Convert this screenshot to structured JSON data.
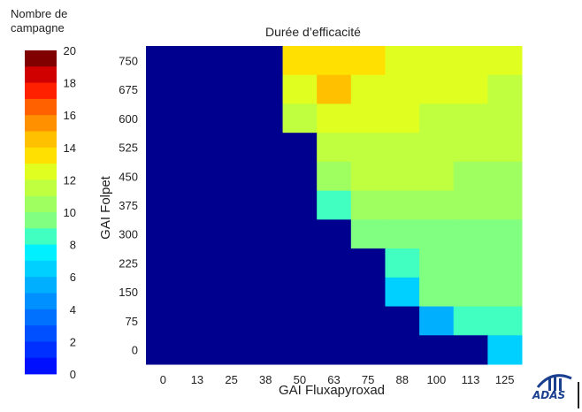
{
  "colorbar": {
    "title_line1": "Nombre de",
    "title_line2": "campagne",
    "ticks": [
      "20",
      "18",
      "16",
      "14",
      "12",
      "10",
      "8",
      "6",
      "4",
      "2",
      "0"
    ]
  },
  "logo": {
    "text": "ADAS"
  },
  "chart_data": {
    "type": "heatmap",
    "title": "Durée d’efficacité",
    "xlabel": "GAI Fluxapyroxad",
    "ylabel": "GAI Folpet",
    "x_categories": [
      "0",
      "13",
      "25",
      "38",
      "50",
      "63",
      "75",
      "88",
      "100",
      "113",
      "125"
    ],
    "y_categories": [
      "750",
      "675",
      "600",
      "525",
      "450",
      "375",
      "300",
      "225",
      "150",
      "75",
      "0"
    ],
    "values": [
      [
        0,
        0,
        0,
        0,
        14,
        14,
        14,
        13,
        13,
        13,
        13
      ],
      [
        0,
        0,
        0,
        0,
        13,
        15,
        13,
        13,
        13,
        13,
        12
      ],
      [
        0,
        0,
        0,
        0,
        12,
        13,
        13,
        13,
        12,
        12,
        12
      ],
      [
        0,
        0,
        0,
        0,
        0,
        12,
        12,
        12,
        12,
        12,
        12
      ],
      [
        0,
        0,
        0,
        0,
        0,
        11,
        12,
        12,
        12,
        11,
        11
      ],
      [
        0,
        0,
        0,
        0,
        0,
        9,
        11,
        11,
        11,
        11,
        11
      ],
      [
        0,
        0,
        0,
        0,
        0,
        0,
        10,
        10,
        10,
        10,
        10
      ],
      [
        0,
        0,
        0,
        0,
        0,
        0,
        0,
        9,
        10,
        10,
        10
      ],
      [
        0,
        0,
        0,
        0,
        0,
        0,
        0,
        7,
        10,
        10,
        10
      ],
      [
        0,
        0,
        0,
        0,
        0,
        0,
        0,
        0,
        6,
        9,
        9
      ],
      [
        0,
        0,
        0,
        0,
        0,
        0,
        0,
        0,
        0,
        0,
        7
      ]
    ],
    "zlim": [
      0,
      20
    ],
    "colorbar_label": "Nombre de campagne",
    "colormap": [
      "#00008f",
      "#0010ff",
      "#0030ff",
      "#0050ff",
      "#0070ff",
      "#0090ff",
      "#00b0ff",
      "#00d0ff",
      "#00f0ff",
      "#40ffc0",
      "#80ff80",
      "#a0ff60",
      "#c0ff40",
      "#e0ff20",
      "#ffe000",
      "#ffc000",
      "#ff9000",
      "#ff6000",
      "#ff2000",
      "#d00000",
      "#800000"
    ]
  }
}
